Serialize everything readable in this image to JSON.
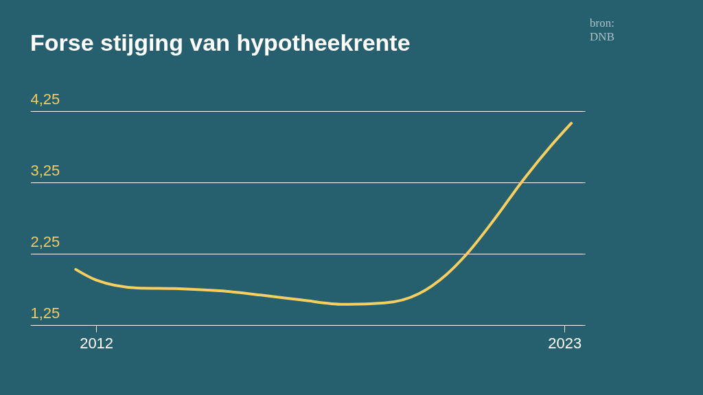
{
  "chart_data": {
    "type": "line",
    "title": "Forse stijging van hypotheekrente",
    "annotations": [
      "bron:\nDNB"
    ],
    "x": [
      2011.52,
      2012,
      2012.97,
      2013.94,
      2014.9,
      2015.87,
      2016.84,
      2017.81,
      2018.77,
      2019.58,
      2020.23,
      2020.71,
      2021.35,
      2022,
      2022.65,
      2023.16
    ],
    "series": [
      {
        "color": "#f7cf5e",
        "values": [
          2.03,
          1.88,
          1.77,
          1.76,
          1.73,
          1.67,
          1.6,
          1.54,
          1.56,
          1.69,
          1.96,
          2.25,
          2.73,
          3.26,
          3.74,
          4.08
        ]
      }
    ],
    "xlim": [
      2010.45,
      2023.48
    ],
    "xticks": [
      2012,
      2023
    ],
    "ylim": [
      1.25,
      4.25
    ],
    "yticks": [
      {
        "value": 1.25,
        "label": "1,25"
      },
      {
        "value": 2.25,
        "label": "2,25"
      },
      {
        "value": 3.25,
        "label": "3,25"
      },
      {
        "value": 4.25,
        "label": "4,25"
      }
    ],
    "grid": "y",
    "marker": "none",
    "line_style": "solid"
  }
}
